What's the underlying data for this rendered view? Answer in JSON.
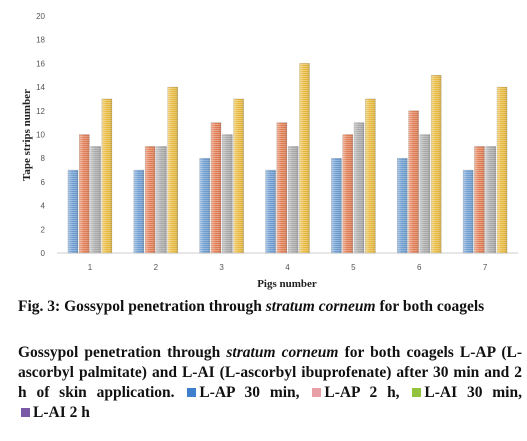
{
  "chart_data": {
    "type": "bar",
    "categories": [
      "1",
      "2",
      "3",
      "4",
      "5",
      "6",
      "7"
    ],
    "series": [
      {
        "name": "L-AP 30 min",
        "color": "#6b9bd0",
        "values": [
          7,
          7,
          8,
          7,
          8,
          8,
          7
        ]
      },
      {
        "name": "L-AP 2 h",
        "color": "#e07b52",
        "values": [
          10,
          9,
          11,
          11,
          10,
          12,
          9
        ]
      },
      {
        "name": "L-AI 30 min",
        "color": "#a8a8a8",
        "values": [
          9,
          9,
          10,
          9,
          11,
          10,
          9
        ]
      },
      {
        "name": "L-AI 2 h",
        "color": "#e7b83c",
        "values": [
          13,
          14,
          13,
          16,
          13,
          15,
          14
        ]
      }
    ],
    "xlabel": "Pigs number",
    "ylabel": "Tape strips number",
    "ylim": [
      0,
      20
    ],
    "yticks": [
      "0",
      "2",
      "4",
      "6",
      "8",
      "10",
      "12",
      "14",
      "16",
      "18",
      "20"
    ],
    "grid": false
  },
  "caption": {
    "fig_label": "Fig. 3:",
    "title_pre": " Gossypol penetration through ",
    "title_em": "stratum corneum",
    "title_post": " for both coagels",
    "desc_pre": "Gossypol penetration through ",
    "desc_em": "stratum corneum",
    "desc_post": " for both coagels L-AP (L-ascorbyl palmitate) and L-AI (L-ascorbyl ibuprofenate) after 30 min and 2 h of skin application.",
    "legend": [
      {
        "label": "L-AP 30 min,",
        "color": "#3f7fcc"
      },
      {
        "label": "L-AP 2 h,",
        "color": "#e8a0a6"
      },
      {
        "label": "L-AI 30 min,",
        "color": "#93c23d"
      },
      {
        "label": "L-AI 2 h",
        "color": "#7a5aa6"
      }
    ]
  }
}
